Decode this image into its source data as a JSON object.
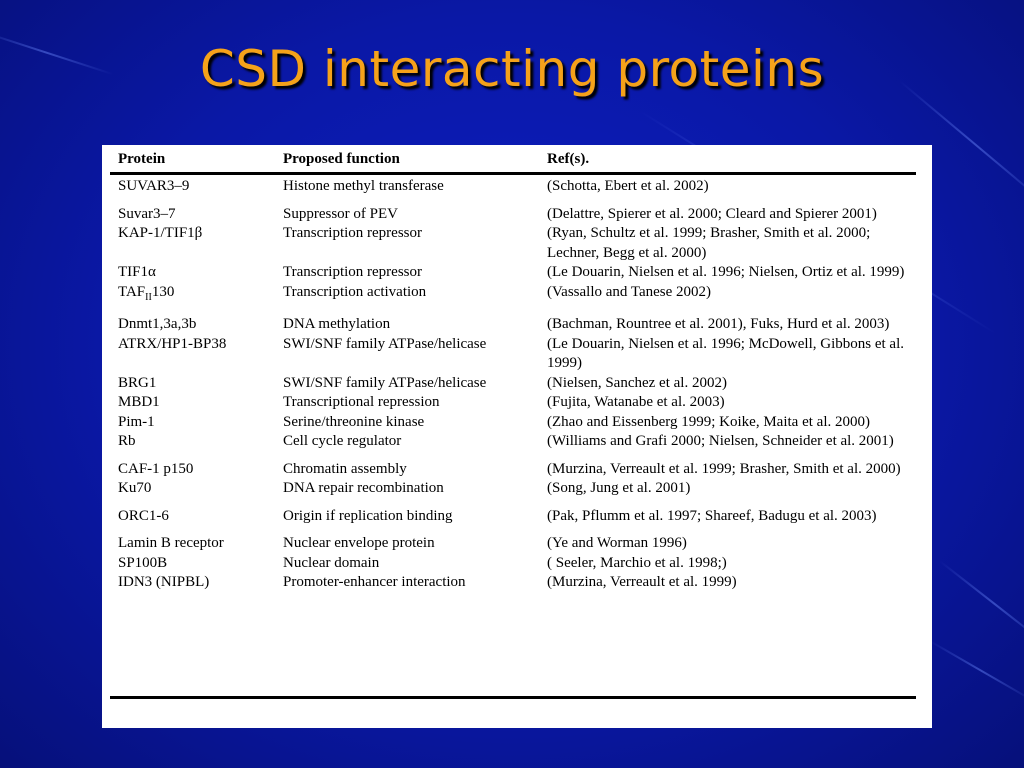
{
  "slide": {
    "title": "CSD interacting proteins"
  },
  "table": {
    "headers": [
      "Protein",
      "Proposed function",
      "Ref(s)."
    ],
    "rows": [
      {
        "protein": "SUVAR3–9",
        "function": "Histone methyl transferase",
        "refs": "(Schotta, Ebert et al. 2002)"
      },
      {
        "protein": "Suvar3–7",
        "function": "Suppressor of PEV",
        "refs": "(Delattre, Spierer et al. 2000; Cleard and Spierer 2001)"
      },
      {
        "protein": "KAP-1/TIF1β",
        "function": "Transcription repressor",
        "refs": "(Ryan, Schultz et al. 1999; Brasher, Smith et al. 2000; Lechner, Begg et al. 2000)"
      },
      {
        "protein": "TIF1α",
        "function": "Transcription repressor",
        "refs": "(Le Douarin, Nielsen et al. 1996; Nielsen, Ortiz et al. 1999)"
      },
      {
        "protein": "TAFII130",
        "protein_main": "TAF",
        "protein_sub": "II",
        "protein_tail": "130",
        "function": "Transcription activation",
        "refs": "(Vassallo and Tanese 2002)"
      },
      {
        "protein": "Dnmt1,3a,3b",
        "function": "DNA methylation",
        "refs": "(Bachman, Rountree et al. 2001), Fuks, Hurd et al. 2003)"
      },
      {
        "protein": "ATRX/HP1-BP38",
        "function": "SWI/SNF family ATPase/helicase",
        "refs": "(Le Douarin, Nielsen et al. 1996; McDowell, Gibbons et al. 1999)"
      },
      {
        "protein": "BRG1",
        "function": "SWI/SNF family ATPase/helicase",
        "refs": "(Nielsen, Sanchez et al. 2002)"
      },
      {
        "protein": "MBD1",
        "function": "Transcriptional repression",
        "refs": "(Fujita, Watanabe et al. 2003)"
      },
      {
        "protein": "Pim-1",
        "function": "Serine/threonine kinase",
        "refs": "(Zhao and Eissenberg 1999; Koike, Maita et al. 2000)"
      },
      {
        "protein": "Rb",
        "function": "Cell cycle regulator",
        "refs": "(Williams and Grafi 2000; Nielsen, Schneider et al. 2001)"
      },
      {
        "protein": "CAF-1 p150",
        "function": "Chromatin assembly",
        "refs": "(Murzina, Verreault et al. 1999; Brasher, Smith et al. 2000)"
      },
      {
        "protein": "Ku70",
        "function": "DNA repair recombination",
        "refs": "(Song, Jung et al. 2001)"
      },
      {
        "protein": "ORC1-6",
        "function": "Origin if replication binding",
        "refs": "(Pak, Pflumm et al. 1997; Shareef, Badugu et al. 2003)"
      },
      {
        "protein": "Lamin B receptor",
        "function": "Nuclear envelope protein",
        "refs": "(Ye and Worman 1996)"
      },
      {
        "protein": "SP100B",
        "function": "Nuclear domain",
        "refs": "( Seeler, Marchio et al. 1998;)"
      },
      {
        "protein": "IDN3 (NIPBL)",
        "function": "Promoter-enhancer interaction",
        "refs": "(Murzina, Verreault et al. 1999)"
      }
    ]
  },
  "colors": {
    "background": "#0a17a8",
    "title": "#f5a21a",
    "panel": "#ffffff"
  }
}
